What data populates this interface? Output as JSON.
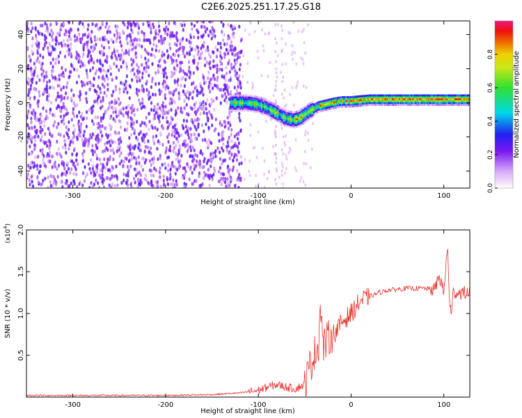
{
  "chart_data": [
    {
      "type": "heatmap",
      "title": "C2E6.2025.251.17.25.G18",
      "xlabel": "Height of straight line (km)",
      "ylabel": "Frequency (Hz)",
      "xlim": [
        -350,
        128
      ],
      "ylim": [
        -50,
        48
      ],
      "xticks": [
        -300,
        -200,
        -100,
        0,
        100
      ],
      "yticks": [
        -40,
        -20,
        0,
        20,
        40
      ],
      "colorbar": {
        "label": "Normalized spectral amplitude",
        "range": [
          0.0,
          1.0
        ],
        "ticks": [
          0.0,
          0.2,
          0.4,
          0.6,
          0.8
        ]
      },
      "ridge": {
        "description": "frequency of peak amplitude vs height",
        "x": [
          -125,
          -110,
          -100,
          -90,
          -80,
          -70,
          -62,
          -55,
          -45,
          -35,
          -20,
          -10,
          0,
          20,
          50,
          80,
          100,
          128
        ],
        "y": [
          0,
          0,
          -1,
          -3,
          -6,
          -9,
          -10,
          -9,
          -5,
          -2,
          0,
          1,
          1,
          2,
          2,
          2,
          2,
          2
        ]
      }
    },
    {
      "type": "line",
      "xlabel": "Height of straight line (km)",
      "ylabel": "SNR (10 * v/v)",
      "y_multiplier": "(x10",
      "y_multiplier_exp": "4",
      "xlim": [
        -350,
        128
      ],
      "ylim": [
        0,
        2.0
      ],
      "xticks": [
        -300,
        -200,
        -100,
        0,
        100
      ],
      "yticks": [
        0.5,
        1.0,
        1.5,
        2.0
      ],
      "ytick_labels": [
        "0.5",
        "1.0",
        "1.5",
        "2.0"
      ],
      "color": "#e8302a",
      "series": [
        {
          "name": "SNR",
          "x": [
            -350,
            -300,
            -250,
            -200,
            -150,
            -120,
            -100,
            -90,
            -80,
            -70,
            -60,
            -50,
            -45,
            -40,
            -35,
            -33,
            -30,
            -25,
            -20,
            -15,
            -10,
            -5,
            0,
            10,
            20,
            30,
            40,
            60,
            80,
            90,
            95,
            100,
            104,
            106,
            108,
            110,
            120,
            128
          ],
          "y": [
            0.02,
            0.02,
            0.02,
            0.02,
            0.03,
            0.05,
            0.08,
            0.12,
            0.15,
            0.12,
            0.1,
            0.15,
            0.35,
            0.5,
            0.65,
            1.15,
            0.6,
            0.7,
            0.75,
            0.8,
            0.9,
            0.95,
            1.0,
            1.15,
            1.2,
            1.25,
            1.28,
            1.3,
            1.3,
            1.28,
            1.45,
            1.25,
            1.8,
            1.2,
            0.95,
            1.25,
            1.25,
            1.24
          ]
        }
      ]
    }
  ]
}
